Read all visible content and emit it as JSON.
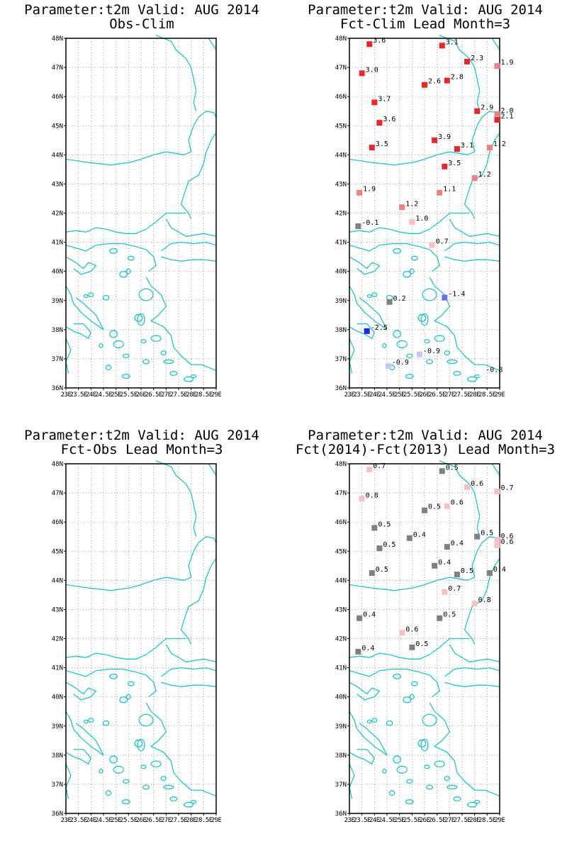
{
  "colors": {
    "coast": "#1cc7c7",
    "frame": "#000000",
    "grid": "#9a9a9a"
  },
  "axis": {
    "lat_labels": [
      "36N",
      "37N",
      "38N",
      "39N",
      "40N",
      "41N",
      "42N",
      "43N",
      "44N",
      "45N",
      "46N",
      "47N",
      "48N"
    ],
    "lon_labels": [
      "23E",
      "23.5E",
      "24E",
      "24.5E",
      "25E",
      "25.5E",
      "26E",
      "26.5E",
      "27E",
      "27.5E",
      "28E",
      "28.5E",
      "29E"
    ],
    "lat_range": [
      36,
      48
    ],
    "lon_range": [
      23,
      29
    ]
  },
  "panels": [
    {
      "title1": "Parameter:t2m Valid: AUG 2014",
      "title2": "Obs-Clim",
      "stations": []
    },
    {
      "title1": "Parameter:t2m Valid: AUG 2014",
      "title2": "Fct-Clim Lead Month=3",
      "stations": [
        {
          "lon": 23.8,
          "lat": 47.8,
          "value": "3.6",
          "color": "#e8272a"
        },
        {
          "lon": 26.7,
          "lat": 47.75,
          "value": "3.1",
          "color": "#e8272a"
        },
        {
          "lon": 27.7,
          "lat": 47.2,
          "value": "2.3",
          "color": "#e8272a"
        },
        {
          "lon": 28.9,
          "lat": 47.05,
          "value": "1.9",
          "color": "#f07f7f"
        },
        {
          "lon": 23.5,
          "lat": 46.8,
          "value": "3.0",
          "color": "#e8272a"
        },
        {
          "lon": 26.0,
          "lat": 46.4,
          "value": "2.6",
          "color": "#e8272a"
        },
        {
          "lon": 26.9,
          "lat": 46.55,
          "value": "2.8",
          "color": "#e8272a"
        },
        {
          "lon": 24.0,
          "lat": 45.8,
          "value": "3.7",
          "color": "#e8272a"
        },
        {
          "lon": 28.1,
          "lat": 45.5,
          "value": "2.9",
          "color": "#e8272a"
        },
        {
          "lon": 28.9,
          "lat": 45.4,
          "value": "2.0",
          "color": "#f07f7f"
        },
        {
          "lon": 28.9,
          "lat": 45.2,
          "value": "2.1",
          "color": "#e8272a"
        },
        {
          "lon": 24.2,
          "lat": 45.1,
          "value": "3.6",
          "color": "#e8272a"
        },
        {
          "lon": 26.4,
          "lat": 44.5,
          "value": "3.9",
          "color": "#e8272a"
        },
        {
          "lon": 27.3,
          "lat": 44.2,
          "value": "3.1",
          "color": "#e8272a"
        },
        {
          "lon": 23.9,
          "lat": 44.25,
          "value": "3.5",
          "color": "#e8272a"
        },
        {
          "lon": 28.6,
          "lat": 44.25,
          "value": "1.2",
          "color": "#f07f7f"
        },
        {
          "lon": 26.8,
          "lat": 43.6,
          "value": "3.5",
          "color": "#e8272a"
        },
        {
          "lon": 28.0,
          "lat": 43.2,
          "value": "1.2",
          "color": "#f07f7f"
        },
        {
          "lon": 23.4,
          "lat": 42.7,
          "value": "1.9",
          "color": "#f07f7f"
        },
        {
          "lon": 26.6,
          "lat": 42.7,
          "value": "1.1",
          "color": "#f07f7f"
        },
        {
          "lon": 25.1,
          "lat": 42.2,
          "value": "1.2",
          "color": "#f07f7f"
        },
        {
          "lon": 25.5,
          "lat": 41.7,
          "value": "1.0",
          "color": "#fac0c0"
        },
        {
          "lon": 23.35,
          "lat": 41.55,
          "value": "-0.1",
          "color": "#808080"
        },
        {
          "lon": 26.3,
          "lat": 40.9,
          "value": "0.7",
          "color": "#fac0c0"
        },
        {
          "lon": 24.6,
          "lat": 38.95,
          "value": "0.2",
          "color": "#808080"
        },
        {
          "lon": 26.8,
          "lat": 39.1,
          "value": "-1.4",
          "color": "#6f6ff5"
        },
        {
          "lon": 23.7,
          "lat": 37.95,
          "value": "-2.5",
          "color": "#2424e8"
        },
        {
          "lon": 25.8,
          "lat": 37.15,
          "value": "-0.9",
          "color": "#c8c8f8"
        },
        {
          "lon": 24.55,
          "lat": 36.75,
          "value": "-0.9",
          "color": "#c8c8f8"
        },
        {
          "lon": 28.3,
          "lat": 36.5,
          "value": "-0.8",
          "color": "#ffffff"
        }
      ]
    },
    {
      "title1": "Parameter:t2m Valid: AUG 2014",
      "title2": "Fct-Obs Lead Month=3",
      "stations": []
    },
    {
      "title1": "Parameter:t2m Valid: AUG 2014",
      "title2": "Fct(2014)-Fct(2013) Lead Month=3",
      "stations": [
        {
          "lon": 23.8,
          "lat": 47.8,
          "value": "0.7",
          "color": "#fac0c0"
        },
        {
          "lon": 26.7,
          "lat": 47.75,
          "value": "0.5",
          "color": "#808080"
        },
        {
          "lon": 27.7,
          "lat": 47.2,
          "value": "0.6",
          "color": "#fac0c0"
        },
        {
          "lon": 28.9,
          "lat": 47.05,
          "value": "0.7",
          "color": "#fac0c0"
        },
        {
          "lon": 23.5,
          "lat": 46.8,
          "value": "0.8",
          "color": "#fac0c0"
        },
        {
          "lon": 26.0,
          "lat": 46.4,
          "value": "0.5",
          "color": "#808080"
        },
        {
          "lon": 26.9,
          "lat": 46.55,
          "value": "0.6",
          "color": "#fac0c0"
        },
        {
          "lon": 24.0,
          "lat": 45.8,
          "value": "0.5",
          "color": "#808080"
        },
        {
          "lon": 25.4,
          "lat": 45.45,
          "value": "0.4",
          "color": "#808080"
        },
        {
          "lon": 28.1,
          "lat": 45.5,
          "value": "0.5",
          "color": "#808080"
        },
        {
          "lon": 28.9,
          "lat": 45.4,
          "value": "0.6",
          "color": "#fac0c0"
        },
        {
          "lon": 28.9,
          "lat": 45.2,
          "value": "0.6",
          "color": "#fac0c0"
        },
        {
          "lon": 24.2,
          "lat": 45.1,
          "value": "0.5",
          "color": "#808080"
        },
        {
          "lon": 26.9,
          "lat": 45.15,
          "value": "0.4",
          "color": "#808080"
        },
        {
          "lon": 26.4,
          "lat": 44.5,
          "value": "0.4",
          "color": "#808080"
        },
        {
          "lon": 27.3,
          "lat": 44.2,
          "value": "0.5",
          "color": "#808080"
        },
        {
          "lon": 23.9,
          "lat": 44.25,
          "value": "0.5",
          "color": "#808080"
        },
        {
          "lon": 28.6,
          "lat": 44.25,
          "value": "0.4",
          "color": "#808080"
        },
        {
          "lon": 26.8,
          "lat": 43.6,
          "value": "0.7",
          "color": "#fac0c0"
        },
        {
          "lon": 28.0,
          "lat": 43.2,
          "value": "0.8",
          "color": "#fac0c0"
        },
        {
          "lon": 23.4,
          "lat": 42.7,
          "value": "0.4",
          "color": "#808080"
        },
        {
          "lon": 26.6,
          "lat": 42.7,
          "value": "0.5",
          "color": "#808080"
        },
        {
          "lon": 25.1,
          "lat": 42.2,
          "value": "0.6",
          "color": "#fac0c0"
        },
        {
          "lon": 25.5,
          "lat": 41.7,
          "value": "0.5",
          "color": "#808080"
        },
        {
          "lon": 23.35,
          "lat": 41.55,
          "value": "0.4",
          "color": "#808080"
        }
      ]
    }
  ]
}
